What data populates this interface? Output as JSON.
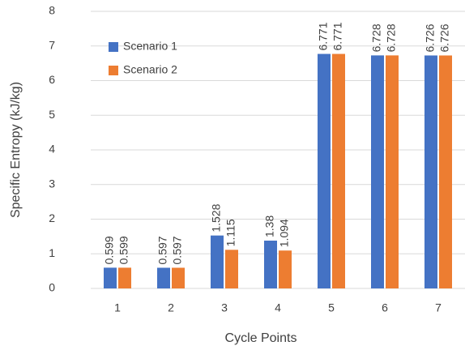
{
  "chart_data": {
    "type": "bar",
    "xlabel": "Cycle Points",
    "ylabel": "Specific Entropy (kJ/kg)",
    "categories": [
      "1",
      "2",
      "3",
      "4",
      "5",
      "6",
      "7"
    ],
    "series": [
      {
        "name": "Scenario 1",
        "color": "#4472c4",
        "values": [
          0.599,
          0.597,
          1.528,
          1.38,
          6.771,
          6.728,
          6.726
        ]
      },
      {
        "name": "Scenario 2",
        "color": "#ed7d31",
        "values": [
          0.599,
          0.597,
          1.115,
          1.094,
          6.771,
          6.728,
          6.726
        ]
      }
    ],
    "ylim": [
      0,
      8
    ],
    "yticks": [
      0,
      1,
      2,
      3,
      4,
      5,
      6,
      7,
      8
    ],
    "grid": true,
    "legend": "upper left"
  }
}
